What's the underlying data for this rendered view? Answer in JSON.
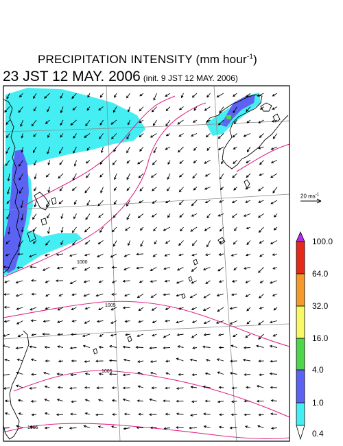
{
  "title": {
    "main": "PRECIPITATION INTENSITY (mm hour",
    "exp": "-1",
    "close": ")",
    "time": "23 JST 12 MAY. 2006",
    "init": "(init. 9 JST 12 MAY. 2006)"
  },
  "reference_vector": {
    "label": "20 ms",
    "exp": "-1"
  },
  "colorbar": {
    "levels": [
      "0.4",
      "1.0",
      "4.0",
      "16.0",
      "32.0",
      "64.0",
      "100.0"
    ],
    "colors": [
      "#44eef2",
      "#5c63f2",
      "#4fd64a",
      "#f8f866",
      "#f49a2c",
      "#e52a1a",
      "#b030e8"
    ]
  },
  "isobars": {
    "color": "#e0268a",
    "labels": [
      "1000",
      "1005",
      "1005",
      "1005"
    ]
  },
  "colors": {
    "coastline": "#000000",
    "grid": "#888888",
    "light_rain": "#44eef2",
    "moderate_rain": "#5c63f2"
  }
}
